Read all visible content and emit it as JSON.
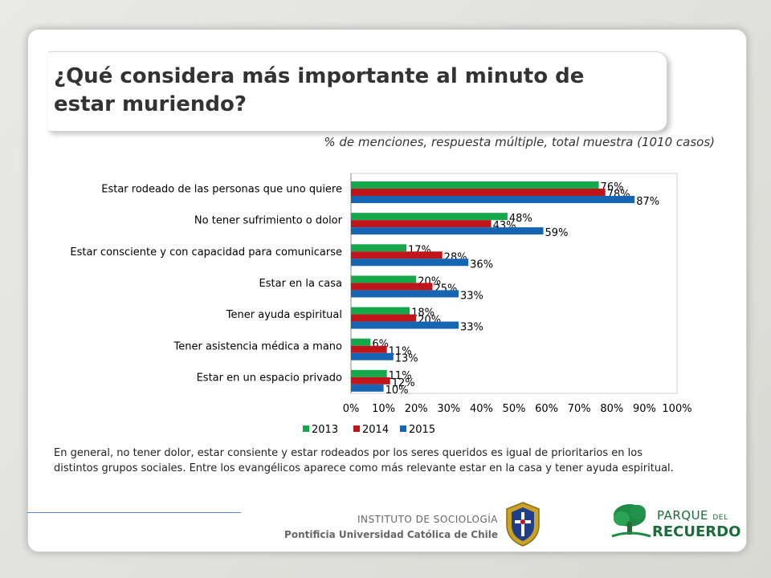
{
  "slide": {
    "title": "¿Qué considera más importante al minuto de estar muriendo?",
    "subtitle": "% de menciones, respuesta múltiple, total muestra (1010 casos)",
    "note": "En general, no tener dolor, estar consiente y estar rodeados por los seres queridos es igual de prioritarios en los distintos grupos sociales. Entre los evangélicos aparece como más relevante estar en la casa y tener ayuda espiritual.",
    "footer": {
      "institute": "INSTITUTO DE SOCIOLOGÍA",
      "university": "Pontificia Universidad Católica de Chile"
    },
    "logos": {
      "seal_icon": "uc-seal-icon",
      "park_icon": "tree-logo-icon",
      "park_word_1": "PARQUE",
      "park_word_2": "DEL",
      "park_word_3": "RECUERDO"
    }
  },
  "chart_data": {
    "type": "bar",
    "orientation": "horizontal",
    "categories": [
      "Estar rodeado de las personas que uno quiere",
      "No tener sufrimiento o dolor",
      "Estar consciente y con capacidad para comunicarse",
      "Estar en la casa",
      "Tener ayuda espiritual",
      "Tener asistencia médica a mano",
      "Estar en un espacio privado"
    ],
    "series": [
      {
        "name": "2013",
        "color": "#14a84b",
        "values": [
          76,
          48,
          17,
          20,
          18,
          6,
          11
        ],
        "labels": [
          "76%",
          "48%",
          "17%",
          "20%",
          "18%",
          "6%",
          "11%"
        ]
      },
      {
        "name": "2014",
        "color": "#c0161b",
        "values": [
          78,
          43,
          28,
          25,
          20,
          11,
          12
        ],
        "labels": [
          "78%",
          "43%",
          "28%",
          "25%",
          "20%",
          "11%",
          "12%"
        ]
      },
      {
        "name": "2015",
        "color": "#1665b3",
        "values": [
          87,
          59,
          36,
          33,
          33,
          13,
          10
        ],
        "labels": [
          "87%",
          "59%",
          "36%",
          "33%",
          "33%",
          "13%",
          "10%"
        ]
      }
    ],
    "xlim": [
      0,
      100
    ],
    "xticks": [
      0,
      10,
      20,
      30,
      40,
      50,
      60,
      70,
      80,
      90,
      100
    ],
    "xtick_labels": [
      "0%",
      "10%",
      "20%",
      "30%",
      "40%",
      "50%",
      "60%",
      "70%",
      "80%",
      "90%",
      "100%"
    ],
    "legend_position": "bottom",
    "grid": false
  }
}
